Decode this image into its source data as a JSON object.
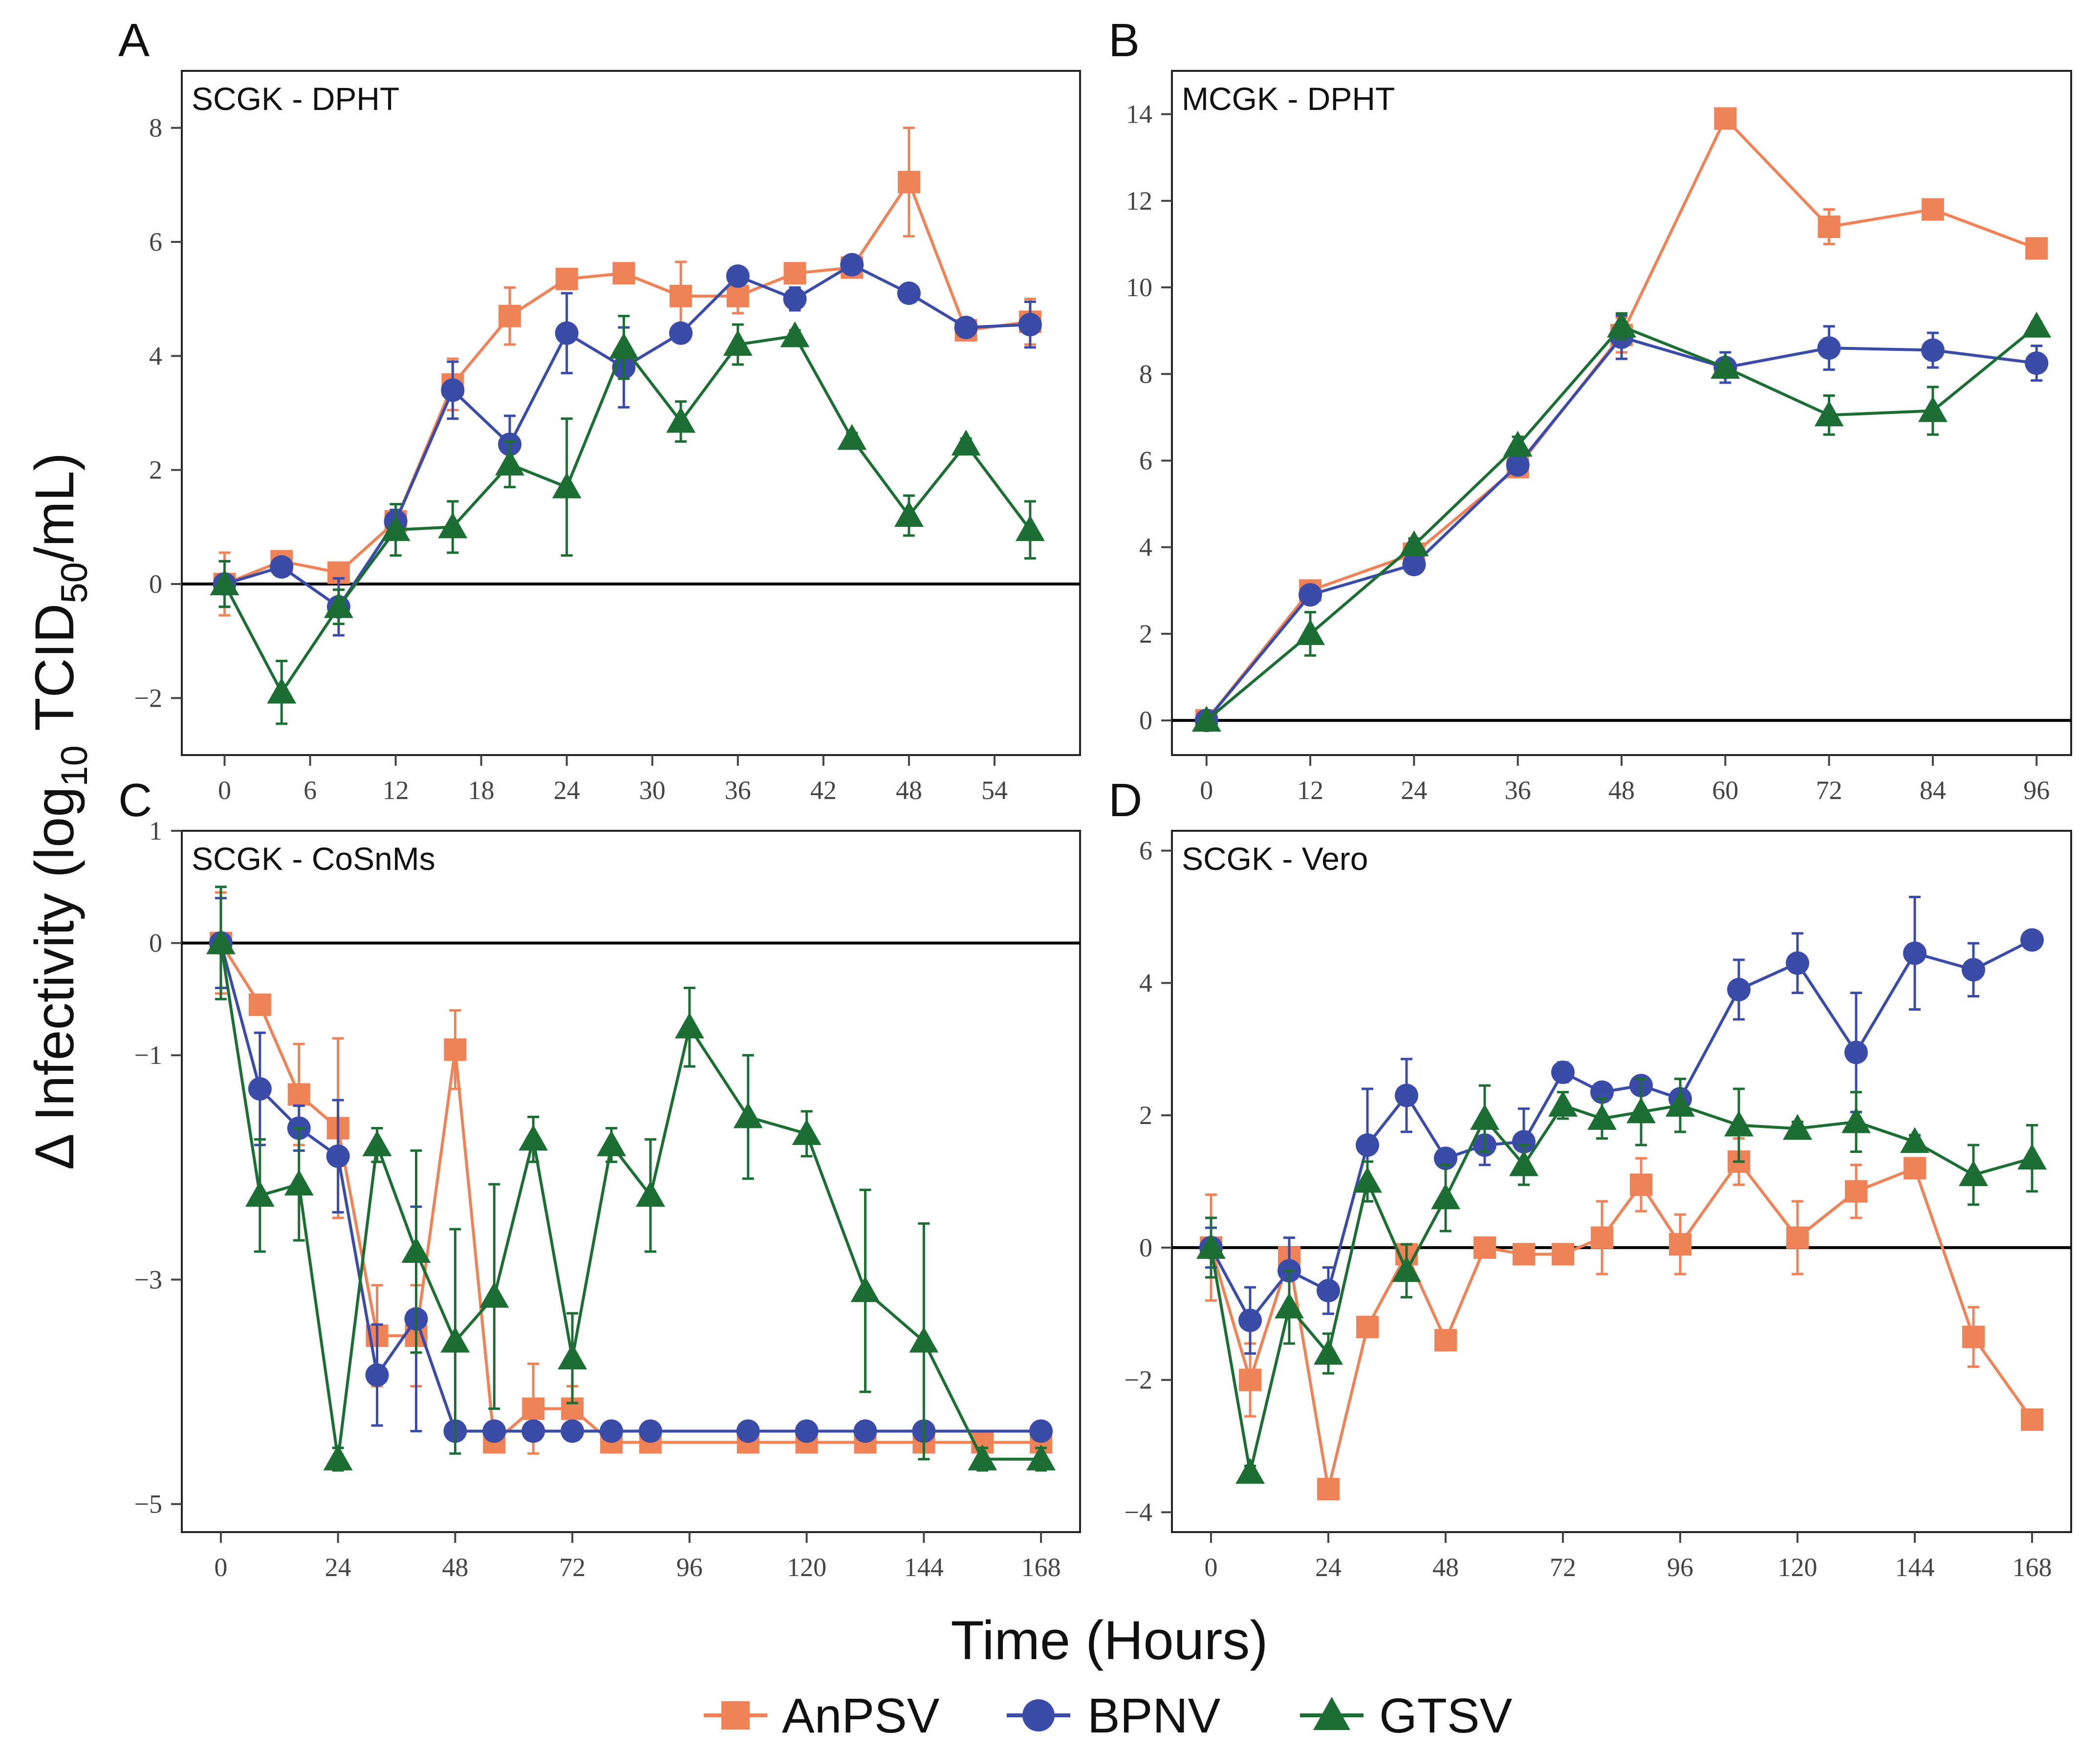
{
  "figure": {
    "ylabel_prefix": "Δ Infectivity (log",
    "ylabel_sub1": "10",
    "ylabel_mid": " TCID",
    "ylabel_sub2": "50",
    "ylabel_suffix": "/mL)",
    "xlabel": "Time (Hours)"
  },
  "colors": {
    "AnPSV": "#F08258",
    "BPNV": "#3A4BA8",
    "GTSV": "#1C6E35"
  },
  "legend": [
    {
      "name": "AnPSV",
      "marker": "square"
    },
    {
      "name": "BPNV",
      "marker": "circle"
    },
    {
      "name": "GTSV",
      "marker": "triangle"
    }
  ],
  "chart_data": [
    {
      "type": "line",
      "letter": "A",
      "title": "SCGK - DPHT",
      "xlim": [
        -3,
        60
      ],
      "ylim": [
        -3,
        9
      ],
      "xticks": [
        0,
        6,
        12,
        18,
        24,
        30,
        36,
        42,
        48,
        54
      ],
      "yticks": [
        -2,
        0,
        2,
        4,
        6,
        8
      ],
      "ytick_labels": [
        "−2",
        "0",
        "2",
        "4",
        "6",
        "8"
      ],
      "series": [
        {
          "name": "AnPSV",
          "x": [
            0,
            4,
            8,
            12,
            16,
            20,
            24,
            28,
            32,
            36,
            40,
            44,
            48,
            52,
            56.5
          ],
          "y": [
            0,
            0.4,
            0.2,
            1.1,
            3.5,
            4.7,
            5.35,
            5.45,
            5.05,
            5.05,
            5.45,
            5.55,
            7.05,
            4.45,
            4.6
          ],
          "err": [
            0.55,
            0.1,
            0.1,
            0.15,
            0.45,
            0.5,
            0.15,
            0.1,
            0.6,
            0.3,
            0.1,
            0.15,
            0.95,
            0.1,
            0.4
          ]
        },
        {
          "name": "BPNV",
          "x": [
            0,
            4,
            8,
            12,
            16,
            20,
            24,
            28,
            32,
            36,
            40,
            44,
            48,
            52,
            56.5
          ],
          "y": [
            0,
            0.3,
            -0.4,
            1.1,
            3.4,
            2.45,
            4.4,
            3.8,
            4.4,
            5.4,
            5.0,
            5.6,
            5.1,
            4.5,
            4.55
          ],
          "err": [
            0.4,
            0.1,
            0.5,
            0.2,
            0.5,
            0.5,
            0.7,
            0.7,
            0.1,
            0.1,
            0.2,
            0.1,
            0.1,
            0.1,
            0.4
          ]
        },
        {
          "name": "GTSV",
          "x": [
            0,
            4,
            8,
            12,
            16,
            20,
            24,
            28,
            32,
            36,
            40,
            44,
            48,
            52,
            56.5
          ],
          "y": [
            0,
            -1.9,
            -0.4,
            0.95,
            1.0,
            2.1,
            1.7,
            4.15,
            2.85,
            4.2,
            4.35,
            2.55,
            1.2,
            2.45,
            0.95
          ],
          "err": [
            0.4,
            0.55,
            0.3,
            0.45,
            0.45,
            0.4,
            1.2,
            0.55,
            0.35,
            0.35,
            0.1,
            0.1,
            0.35,
            0.1,
            0.5
          ]
        }
      ]
    },
    {
      "type": "line",
      "letter": "B",
      "title": "MCGK - DPHT",
      "xlim": [
        -4,
        100
      ],
      "ylim": [
        -0.8,
        15
      ],
      "xticks": [
        0,
        12,
        24,
        36,
        48,
        60,
        72,
        84,
        96
      ],
      "yticks": [
        0,
        2,
        4,
        6,
        8,
        10,
        12,
        14
      ],
      "ytick_labels": [
        "0",
        "2",
        "4",
        "6",
        "8",
        "10",
        "12",
        "14"
      ],
      "series": [
        {
          "name": "AnPSV",
          "x": [
            0,
            12,
            24,
            36,
            48,
            60,
            72,
            84,
            96
          ],
          "y": [
            0,
            3.0,
            3.85,
            5.85,
            8.9,
            13.9,
            11.4,
            11.8,
            10.9
          ],
          "err": [
            0.1,
            0.15,
            0.1,
            0.2,
            0.4,
            0.15,
            0.4,
            0.2,
            0.1
          ]
        },
        {
          "name": "BPNV",
          "x": [
            0,
            12,
            24,
            36,
            48,
            60,
            72,
            84,
            96
          ],
          "y": [
            0,
            2.9,
            3.6,
            5.9,
            8.85,
            8.15,
            8.6,
            8.55,
            8.25
          ],
          "err": [
            0.1,
            0.15,
            0.1,
            0.2,
            0.5,
            0.35,
            0.5,
            0.4,
            0.4
          ]
        },
        {
          "name": "GTSV",
          "x": [
            0,
            12,
            24,
            36,
            48,
            60,
            72,
            84,
            96
          ],
          "y": [
            0,
            2.0,
            4.05,
            6.35,
            9.1,
            8.15,
            7.05,
            7.15,
            9.1
          ],
          "err": [
            0.1,
            0.5,
            0.15,
            0.2,
            0.3,
            0.1,
            0.45,
            0.55,
            0.1
          ]
        }
      ]
    },
    {
      "type": "line",
      "letter": "C",
      "title": "SCGK - CoSnMs",
      "xlim": [
        -8,
        176
      ],
      "ylim": [
        -5.25,
        1.0
      ],
      "xticks": [
        0,
        24,
        48,
        72,
        96,
        120,
        144,
        168
      ],
      "yticks": [
        -5,
        -3,
        -1,
        0,
        1
      ],
      "ytick_labels": [
        "−5",
        "−3",
        "−1",
        "0",
        "1"
      ],
      "series": [
        {
          "name": "AnPSV",
          "x": [
            0,
            8,
            16,
            24,
            32,
            40,
            48,
            56,
            64,
            72,
            80,
            88,
            108,
            120,
            132,
            144,
            156,
            168
          ],
          "y": [
            0,
            -0.55,
            -1.35,
            -1.65,
            -3.5,
            -3.5,
            -0.95,
            -4.45,
            -4.15,
            -4.15,
            -4.45,
            -4.45,
            -4.45,
            -4.45,
            -4.45,
            -4.45,
            -4.45,
            -4.45
          ],
          "err": [
            0.45,
            0.05,
            0.45,
            0.8,
            0.45,
            0.45,
            0.35,
            0.05,
            0.4,
            0.2,
            0.05,
            0.05,
            0.05,
            0.05,
            0.05,
            0.05,
            0.05,
            0.05
          ]
        },
        {
          "name": "BPNV",
          "x": [
            0,
            8,
            16,
            24,
            32,
            40,
            48,
            56,
            64,
            72,
            80,
            88,
            108,
            120,
            132,
            144,
            168
          ],
          "y": [
            0,
            -1.3,
            -1.65,
            -1.9,
            -3.85,
            -3.35,
            -4.35,
            -4.35,
            -4.35,
            -4.35,
            -4.35,
            -4.35,
            -4.35,
            -4.35,
            -4.35,
            -4.35,
            -4.35
          ],
          "err": [
            0.4,
            0.5,
            0.2,
            0.5,
            0.45,
            1.0,
            0.05,
            0.05,
            0.05,
            0.05,
            0.05,
            0.05,
            0.05,
            0.05,
            0.05,
            0.05,
            0.05
          ]
        },
        {
          "name": "GTSV",
          "x": [
            0,
            8,
            16,
            24,
            32,
            40,
            48,
            56,
            64,
            72,
            80,
            88,
            96,
            108,
            120,
            132,
            144,
            156,
            168
          ],
          "y": [
            0,
            -2.25,
            -2.15,
            -4.6,
            -1.8,
            -2.75,
            -3.55,
            -3.15,
            -1.75,
            -3.7,
            -1.8,
            -2.25,
            -0.75,
            -1.55,
            -1.7,
            -3.1,
            -3.55,
            -4.6,
            -4.6
          ],
          "err": [
            0.5,
            0.5,
            0.5,
            0.1,
            0.15,
            0.9,
            1.0,
            1.0,
            0.2,
            0.4,
            0.15,
            0.5,
            0.35,
            0.55,
            0.2,
            0.9,
            1.05,
            0.1,
            0.1
          ]
        }
      ]
    },
    {
      "type": "line",
      "letter": "D",
      "title": "SCGK - Vero",
      "xlim": [
        -8,
        176
      ],
      "ylim": [
        -4.3,
        6.3
      ],
      "xticks": [
        0,
        24,
        48,
        72,
        96,
        120,
        144,
        168
      ],
      "yticks": [
        -4,
        -2,
        0,
        2,
        4,
        6
      ],
      "ytick_labels": [
        "−4",
        "−2",
        "0",
        "2",
        "4",
        "6"
      ],
      "series": [
        {
          "name": "AnPSV",
          "x": [
            0,
            8,
            16,
            24,
            32,
            40,
            48,
            56,
            64,
            72,
            80,
            88,
            96,
            108,
            120,
            132,
            144,
            156,
            168
          ],
          "y": [
            0,
            -2.0,
            -0.15,
            -3.65,
            -1.2,
            -0.1,
            -1.4,
            0.0,
            -0.1,
            -0.1,
            0.15,
            0.95,
            0.05,
            1.3,
            0.15,
            0.85,
            1.2,
            -1.35,
            -2.6
          ],
          "err": [
            0.8,
            0.55,
            0.3,
            0.1,
            0.1,
            0.1,
            0.1,
            0.1,
            0.1,
            0.1,
            0.55,
            0.4,
            0.45,
            0.35,
            0.55,
            0.4,
            0.1,
            0.45,
            0.1
          ]
        },
        {
          "name": "BPNV",
          "x": [
            0,
            8,
            16,
            24,
            32,
            40,
            48,
            56,
            64,
            72,
            80,
            88,
            96,
            108,
            120,
            132,
            144,
            156,
            168
          ],
          "y": [
            0,
            -1.1,
            -0.35,
            -0.65,
            1.55,
            2.3,
            1.35,
            1.55,
            1.6,
            2.65,
            2.35,
            2.45,
            2.25,
            3.9,
            4.3,
            2.95,
            4.45,
            4.2,
            4.65
          ],
          "err": [
            0.3,
            0.5,
            0.5,
            0.35,
            0.85,
            0.55,
            0.1,
            0.3,
            0.5,
            0.15,
            0.1,
            0.1,
            0.1,
            0.45,
            0.45,
            0.9,
            0.85,
            0.4,
            0.1
          ]
        },
        {
          "name": "GTSV",
          "x": [
            0,
            8,
            16,
            24,
            32,
            40,
            48,
            56,
            64,
            72,
            80,
            88,
            96,
            108,
            120,
            132,
            144,
            156,
            168
          ],
          "y": [
            0,
            -3.4,
            -0.9,
            -1.6,
            1.0,
            -0.35,
            0.75,
            1.95,
            1.25,
            2.15,
            1.95,
            2.05,
            2.15,
            1.85,
            1.8,
            1.9,
            1.6,
            1.1,
            1.35
          ],
          "err": [
            0.45,
            0.1,
            0.55,
            0.3,
            0.3,
            0.4,
            0.5,
            0.5,
            0.3,
            0.2,
            0.3,
            0.5,
            0.4,
            0.55,
            0.1,
            0.45,
            0.1,
            0.45,
            0.5
          ]
        }
      ]
    }
  ]
}
